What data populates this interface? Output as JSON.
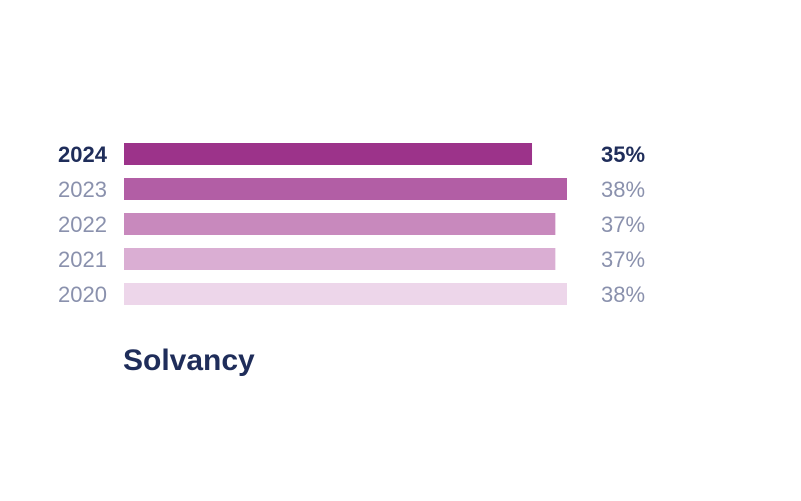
{
  "chart_data": {
    "type": "bar",
    "orientation": "horizontal",
    "title": "Solvancy",
    "categories": [
      "2024",
      "2023",
      "2022",
      "2021",
      "2020"
    ],
    "values": [
      35,
      38,
      37,
      37,
      38
    ],
    "value_labels": [
      "35%",
      "38%",
      "37%",
      "37%",
      "38%"
    ],
    "highlighted_category": "2024",
    "bar_colors": [
      "#9c338a",
      "#b25ea5",
      "#c889bd",
      "#daaed3",
      "#edd6ea"
    ],
    "text_colors": {
      "highlight": "#1f2d5a",
      "muted": "#8a91ad"
    },
    "legend": "none",
    "grid": false,
    "xlim": [
      0,
      38
    ]
  }
}
